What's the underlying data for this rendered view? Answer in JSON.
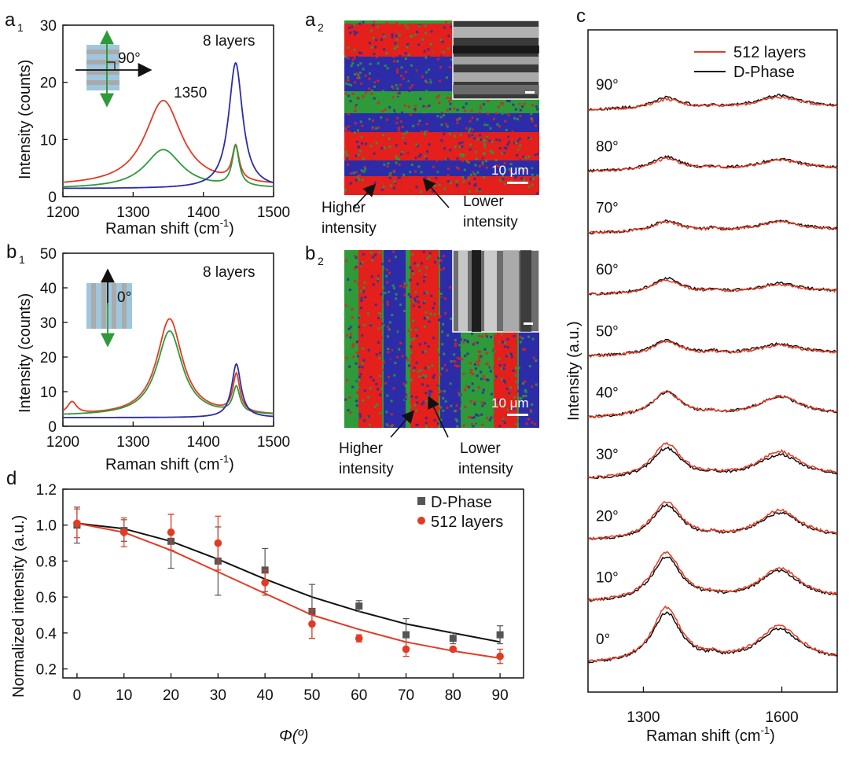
{
  "figure": {
    "panel_labels": {
      "a1": "a",
      "a1_sub": "1",
      "a2": "a",
      "a2_sub": "2",
      "b1": "b",
      "b1_sub": "1",
      "b2": "b",
      "b2_sub": "2",
      "c": "c",
      "d": "d"
    }
  },
  "colors": {
    "red": "#e23b24",
    "green": "#2e9a3a",
    "blue": "#2c2ca8",
    "black": "#111111",
    "gray": "#555555"
  },
  "chart_data": [
    {
      "id": "a1",
      "type": "line",
      "xlabel": "Raman shift (cm",
      "xlabel_sup": "-1",
      "xlabel_close": ")",
      "ylabel": "Intensity (counts)",
      "xlim": [
        1200,
        1500
      ],
      "ylim": [
        0,
        30
      ],
      "xticks": [
        1200,
        1300,
        1400,
        1500
      ],
      "yticks": [
        0,
        10,
        20,
        30
      ],
      "annotations": {
        "layers": "8 layers",
        "peak": "1350",
        "angle": "90°"
      },
      "series": [
        {
          "name": "red",
          "color": "#e23b24",
          "baseline": 1.8,
          "peaks": [
            {
              "c": 1343,
              "w": 32,
              "h": 15.0
            },
            {
              "c": 1446,
              "w": 6,
              "h": 6.0
            }
          ]
        },
        {
          "name": "green",
          "color": "#2e9a3a",
          "baseline": 1.4,
          "peaks": [
            {
              "c": 1343,
              "w": 32,
              "h": 6.8
            },
            {
              "c": 1446,
              "w": 6,
              "h": 7.0
            }
          ]
        },
        {
          "name": "blue",
          "color": "#2c2ca8",
          "baseline": 1.4,
          "peaks": [
            {
              "c": 1446,
              "w": 12,
              "h": 22.0
            }
          ]
        }
      ]
    },
    {
      "id": "b1",
      "type": "line",
      "xlabel": "Raman shift (cm",
      "xlabel_sup": "-1",
      "xlabel_close": ")",
      "ylabel": "Intensity (counts)",
      "xlim": [
        1200,
        1500
      ],
      "ylim": [
        0,
        50
      ],
      "xticks": [
        1200,
        1300,
        1400,
        1500
      ],
      "yticks": [
        0,
        10,
        20,
        30,
        40,
        50
      ],
      "annotations": {
        "layers": "8 layers",
        "angle": "0°"
      },
      "series": [
        {
          "name": "red",
          "color": "#e23b24",
          "baseline": 3.0,
          "peaks": [
            {
              "c": 1213,
              "w": 8,
              "h": 3.5
            },
            {
              "c": 1352,
              "w": 22,
              "h": 28.0
            },
            {
              "c": 1447,
              "w": 6,
              "h": 11.0
            }
          ]
        },
        {
          "name": "green",
          "color": "#2e9a3a",
          "baseline": 3.0,
          "peaks": [
            {
              "c": 1352,
              "w": 22,
              "h": 24.5
            },
            {
              "c": 1447,
              "w": 6,
              "h": 7.5
            }
          ]
        },
        {
          "name": "blue",
          "color": "#2c2ca8",
          "baseline": 2.5,
          "peaks": [
            {
              "c": 1447,
              "w": 8,
              "h": 15.5
            }
          ]
        }
      ]
    },
    {
      "id": "c",
      "type": "line",
      "xlabel": "Raman shift (cm",
      "xlabel_sup": "-1",
      "xlabel_close": ")",
      "ylabel": "Intensity (a.u.)",
      "xlim": [
        1180,
        1720
      ],
      "xticks": [
        1300,
        1600
      ],
      "legend": {
        "position": "top-right",
        "entries": [
          {
            "label": "512 layers",
            "color": "#e23b24"
          },
          {
            "label": "D-Phase",
            "color": "#111111"
          }
        ]
      },
      "angles": [
        "90°",
        "80°",
        "70°",
        "60°",
        "50°",
        "40°",
        "30°",
        "20°",
        "10°",
        "0°"
      ],
      "d_amp": [
        0.5,
        0.6,
        0.5,
        0.7,
        0.7,
        1.1,
        1.35,
        1.55,
        2.0,
        2.25
      ],
      "g_amp": [
        0.55,
        0.45,
        0.45,
        0.4,
        0.45,
        0.85,
        1.0,
        1.15,
        1.3,
        1.45
      ],
      "red_factor": [
        0.85,
        0.9,
        0.9,
        0.85,
        0.85,
        1.0,
        1.15,
        1.1,
        1.1,
        1.1
      ]
    },
    {
      "id": "d",
      "type": "scatter",
      "xlabel": "Φ(º)",
      "ylabel": "Normalized intensity (a.u.)",
      "xlim": [
        -3,
        95
      ],
      "ylim": [
        0.15,
        1.2
      ],
      "xticks": [
        0,
        10,
        20,
        30,
        40,
        50,
        60,
        70,
        80,
        90
      ],
      "yticks": [
        0.2,
        0.4,
        0.6,
        0.8,
        1.0,
        1.2
      ],
      "legend": {
        "position": "top-right"
      },
      "series": [
        {
          "name": "D-Phase",
          "color": "#555555",
          "fit_color": "#111111",
          "marker": "square",
          "x": [
            0,
            10,
            20,
            30,
            40,
            50,
            60,
            70,
            80,
            90
          ],
          "y": [
            1.0,
            0.97,
            0.91,
            0.8,
            0.75,
            0.52,
            0.55,
            0.39,
            0.37,
            0.39
          ],
          "err": [
            0.1,
            0.06,
            0.15,
            0.19,
            0.12,
            0.15,
            0.03,
            0.09,
            0.03,
            0.05
          ],
          "fit": [
            1.01,
            0.98,
            0.91,
            0.81,
            0.7,
            0.6,
            0.52,
            0.45,
            0.4,
            0.35
          ]
        },
        {
          "name": "512 layers",
          "color": "#e23b24",
          "fit_color": "#e23b24",
          "marker": "circle",
          "x": [
            0,
            10,
            20,
            30,
            40,
            50,
            60,
            70,
            80,
            90
          ],
          "y": [
            1.01,
            0.96,
            0.96,
            0.9,
            0.68,
            0.45,
            0.37,
            0.31,
            0.31,
            0.27
          ],
          "err": [
            0.08,
            0.08,
            0.1,
            0.15,
            0.07,
            0.08,
            0.02,
            0.04,
            0.01,
            0.04
          ],
          "fit": [
            1.01,
            0.96,
            0.86,
            0.74,
            0.62,
            0.5,
            0.42,
            0.35,
            0.3,
            0.26
          ]
        }
      ]
    }
  ],
  "maps": {
    "a2": {
      "scale": "10 μm",
      "label_higher": "Higher\nintensity",
      "label_higher_1": "Higher",
      "label_higher_2": "intensity",
      "label_lower_1": "Lower",
      "label_lower_2": "intensity"
    },
    "b2": {
      "scale": "10 μm",
      "label_higher_1": "Higher",
      "label_higher_2": "intensity",
      "label_lower_1": "Lower",
      "label_lower_2": "intensity"
    }
  }
}
